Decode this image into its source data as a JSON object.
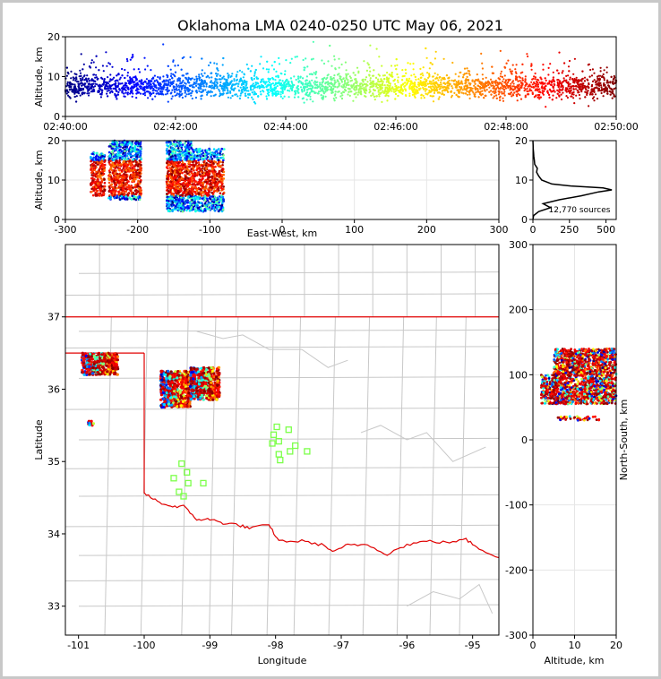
{
  "chart_data": [
    {
      "id": "time-height",
      "type": "scatter",
      "title": "Oklahoma LMA 0240-0250 UTC May 06, 2021",
      "ylabel": "Altitude, km",
      "xlim": [
        "02:40:00",
        "02:50:00"
      ],
      "ylim": [
        0,
        20
      ],
      "x_ticks": [
        "02:40:00",
        "02:42:00",
        "02:44:00",
        "02:46:00",
        "02:48:00",
        "02:50:00"
      ],
      "y_ticks": [
        0,
        10,
        20
      ],
      "grid": false,
      "color_encoding": "time (rainbow, blue to dark red)",
      "altitude_range_km": [
        2,
        20
      ],
      "core_altitude_km": [
        5,
        12
      ]
    },
    {
      "id": "ew-altitude",
      "type": "scatter",
      "xlabel": "East-West, km",
      "ylabel": "Altitude, km",
      "xlim": [
        -300,
        300
      ],
      "ylim": [
        0,
        20
      ],
      "x_ticks": [
        -300,
        -200,
        -100,
        0,
        100,
        200,
        300
      ],
      "y_ticks": [
        0,
        10,
        20
      ],
      "grid": true,
      "clusters": [
        {
          "x_range": [
            -265,
            -245
          ],
          "alt_range": [
            6,
            17
          ]
        },
        {
          "x_range": [
            -240,
            -195
          ],
          "alt_range": [
            5,
            20
          ]
        },
        {
          "x_range": [
            -160,
            -125
          ],
          "alt_range": [
            2,
            20
          ]
        },
        {
          "x_range": [
            -125,
            -80
          ],
          "alt_range": [
            2,
            18
          ]
        }
      ]
    },
    {
      "id": "altitude-histogram",
      "type": "line",
      "xlim": [
        0,
        570
      ],
      "ylim": [
        0,
        20
      ],
      "x_ticks": [
        0,
        250,
        500
      ],
      "y_ticks": [
        0,
        10,
        20
      ],
      "annotation": "12,770 sources",
      "profile": [
        [
          0,
          0
        ],
        [
          5,
          1
        ],
        [
          40,
          2
        ],
        [
          120,
          3
        ],
        [
          70,
          4
        ],
        [
          180,
          5
        ],
        [
          330,
          6
        ],
        [
          450,
          7
        ],
        [
          540,
          7.5
        ],
        [
          480,
          8
        ],
        [
          260,
          8.5
        ],
        [
          130,
          9
        ],
        [
          60,
          10
        ],
        [
          40,
          11
        ],
        [
          25,
          12
        ],
        [
          30,
          13
        ],
        [
          12,
          14
        ],
        [
          10,
          15
        ],
        [
          6,
          16
        ],
        [
          4,
          17
        ],
        [
          2,
          18
        ],
        [
          1,
          19
        ],
        [
          0,
          20
        ]
      ]
    },
    {
      "id": "plan-view",
      "type": "scatter",
      "xlabel": "Longitude",
      "ylabel": "Latitude",
      "xlim": [
        -101.2,
        -94.6
      ],
      "ylim": [
        32.6,
        38
      ],
      "x_ticks": [
        -101,
        -100,
        -99,
        -98,
        -97,
        -96,
        -95
      ],
      "y_ticks": [
        33,
        34,
        35,
        36,
        37
      ],
      "grid": false,
      "clusters": [
        {
          "lon_range": [
            -100.95,
            -100.4
          ],
          "lat_range": [
            36.2,
            36.5
          ]
        },
        {
          "lon_range": [
            -99.75,
            -99.3
          ],
          "lat_range": [
            35.75,
            36.25
          ]
        },
        {
          "lon_range": [
            -99.3,
            -98.85
          ],
          "lat_range": [
            35.85,
            36.3
          ]
        },
        {
          "lon_range": [
            -100.85,
            -100.75
          ],
          "lat_range": [
            35.5,
            35.56
          ]
        }
      ],
      "stations": [
        [
          -97.98,
          35.48
        ],
        [
          -98.03,
          35.37
        ],
        [
          -98.05,
          35.25
        ],
        [
          -97.95,
          35.28
        ],
        [
          -97.8,
          35.44
        ],
        [
          -97.7,
          35.22
        ],
        [
          -97.78,
          35.14
        ],
        [
          -97.95,
          35.1
        ],
        [
          -97.93,
          35.02
        ],
        [
          -97.52,
          35.14
        ],
        [
          -99.43,
          34.97
        ],
        [
          -99.35,
          34.85
        ],
        [
          -99.55,
          34.77
        ],
        [
          -99.33,
          34.7
        ],
        [
          -99.1,
          34.7
        ],
        [
          -99.47,
          34.58
        ],
        [
          -99.4,
          34.52
        ]
      ]
    },
    {
      "id": "ns-altitude",
      "type": "scatter",
      "xlabel": "Altitude, km",
      "ylabel": "North-South, km",
      "xlim": [
        0,
        20
      ],
      "ylim": [
        -300,
        300
      ],
      "x_ticks": [
        0,
        10,
        20
      ],
      "y_ticks": [
        -300,
        -200,
        -100,
        0,
        100,
        200,
        300
      ],
      "grid": true,
      "clusters": [
        {
          "alt_range": [
            5,
            20
          ],
          "ns_range": [
            100,
            140
          ]
        },
        {
          "alt_range": [
            2,
            20
          ],
          "ns_range": [
            55,
            100
          ]
        },
        {
          "alt_range": [
            6,
            16
          ],
          "ns_range": [
            30,
            36
          ]
        }
      ]
    }
  ],
  "colors": {
    "state_border": "#e00000",
    "county_lines": "#c8c8c8",
    "station_marker": "#7cff4a",
    "frame": "#c8c8c8"
  }
}
